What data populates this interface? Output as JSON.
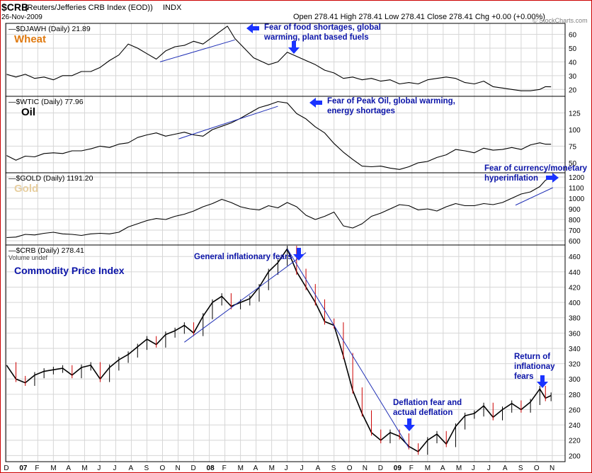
{
  "header": {
    "symbol": "$CRB",
    "description": "(Reuters/Jefferies CRB Index (EOD))",
    "exchange": "INDX",
    "date": "26-Nov-2009",
    "quote_line": "Open 278.41  High 278.41  Low 278.41  Close 278.41  Chg +0.00 (+0.00%)",
    "watermark": "© StockCharts.com"
  },
  "colors": {
    "frame": "#000000",
    "grid": "#d6d6d6",
    "price": "#000000",
    "trend": "#1f2fb5",
    "annotation": "#0b14a8",
    "wheat_label": "#e07a10",
    "oil_label": "#000000",
    "gold_label": "#e8cfa0",
    "crb_label": "#0b14a8",
    "candle_down": "#cc0000",
    "arrow": "#1a33ff",
    "outer_border": "#cc0000"
  },
  "chart_data": [
    {
      "type": "line",
      "id": "wheat",
      "legend": "$DJAWH (Daily) 21.89",
      "big_label": "Wheat",
      "ylim": [
        15,
        68
      ],
      "yticks": [
        20,
        30,
        40,
        50,
        60
      ],
      "points": [
        [
          2007.0,
          31
        ],
        [
          2007.05,
          29
        ],
        [
          2007.1,
          31
        ],
        [
          2007.15,
          28
        ],
        [
          2007.2,
          29
        ],
        [
          2007.25,
          27
        ],
        [
          2007.3,
          30
        ],
        [
          2007.35,
          30
        ],
        [
          2007.4,
          33
        ],
        [
          2007.45,
          33
        ],
        [
          2007.5,
          36
        ],
        [
          2007.55,
          41
        ],
        [
          2007.6,
          45
        ],
        [
          2007.65,
          53
        ],
        [
          2007.7,
          50
        ],
        [
          2007.75,
          46
        ],
        [
          2007.8,
          42
        ],
        [
          2007.85,
          48
        ],
        [
          2007.9,
          51
        ],
        [
          2007.95,
          52
        ],
        [
          2008.0,
          55
        ],
        [
          2008.05,
          53
        ],
        [
          2008.1,
          58
        ],
        [
          2008.15,
          63
        ],
        [
          2008.18,
          66
        ],
        [
          2008.22,
          57
        ],
        [
          2008.27,
          50
        ],
        [
          2008.32,
          43
        ],
        [
          2008.4,
          38
        ],
        [
          2008.45,
          40
        ],
        [
          2008.5,
          47
        ],
        [
          2008.55,
          44
        ],
        [
          2008.6,
          41
        ],
        [
          2008.65,
          38
        ],
        [
          2008.7,
          34
        ],
        [
          2008.75,
          32
        ],
        [
          2008.8,
          28
        ],
        [
          2008.85,
          29
        ],
        [
          2008.9,
          27
        ],
        [
          2008.95,
          28
        ],
        [
          2009.0,
          26
        ],
        [
          2009.05,
          27
        ],
        [
          2009.1,
          24
        ],
        [
          2009.15,
          25
        ],
        [
          2009.2,
          24
        ],
        [
          2009.25,
          27
        ],
        [
          2009.3,
          28
        ],
        [
          2009.35,
          29
        ],
        [
          2009.4,
          28
        ],
        [
          2009.45,
          25
        ],
        [
          2009.5,
          24
        ],
        [
          2009.55,
          26
        ],
        [
          2009.6,
          22
        ],
        [
          2009.65,
          21
        ],
        [
          2009.7,
          20
        ],
        [
          2009.75,
          19
        ],
        [
          2009.8,
          19
        ],
        [
          2009.85,
          20
        ],
        [
          2009.88,
          22
        ],
        [
          2009.91,
          21.89
        ]
      ],
      "trend_lines": [
        [
          [
            2007.82,
            40
          ],
          [
            2008.22,
            56
          ]
        ]
      ],
      "annotation": [
        "Fear of food shortages, global",
        "warming, plant based fuels"
      ]
    },
    {
      "type": "line",
      "id": "oil",
      "legend": "$WTIC (Daily) 77.96",
      "big_label": "Oil",
      "ylim": [
        35,
        150
      ],
      "yticks": [
        50,
        75,
        100,
        125
      ],
      "points": [
        [
          2007.0,
          61
        ],
        [
          2007.05,
          54
        ],
        [
          2007.1,
          60
        ],
        [
          2007.15,
          59
        ],
        [
          2007.2,
          64
        ],
        [
          2007.25,
          65
        ],
        [
          2007.3,
          64
        ],
        [
          2007.35,
          68
        ],
        [
          2007.4,
          68
        ],
        [
          2007.45,
          71
        ],
        [
          2007.5,
          75
        ],
        [
          2007.55,
          73
        ],
        [
          2007.6,
          78
        ],
        [
          2007.65,
          80
        ],
        [
          2007.7,
          88
        ],
        [
          2007.75,
          92
        ],
        [
          2007.8,
          95
        ],
        [
          2007.85,
          90
        ],
        [
          2007.9,
          93
        ],
        [
          2007.95,
          96
        ],
        [
          2008.0,
          92
        ],
        [
          2008.05,
          90
        ],
        [
          2008.1,
          100
        ],
        [
          2008.15,
          105
        ],
        [
          2008.2,
          110
        ],
        [
          2008.25,
          117
        ],
        [
          2008.3,
          125
        ],
        [
          2008.35,
          133
        ],
        [
          2008.4,
          137
        ],
        [
          2008.45,
          142
        ],
        [
          2008.5,
          140
        ],
        [
          2008.55,
          124
        ],
        [
          2008.6,
          116
        ],
        [
          2008.65,
          104
        ],
        [
          2008.7,
          95
        ],
        [
          2008.75,
          79
        ],
        [
          2008.8,
          66
        ],
        [
          2008.85,
          55
        ],
        [
          2008.9,
          45
        ],
        [
          2008.95,
          44
        ],
        [
          2009.0,
          45
        ],
        [
          2009.05,
          42
        ],
        [
          2009.1,
          40
        ],
        [
          2009.15,
          44
        ],
        [
          2009.2,
          50
        ],
        [
          2009.25,
          52
        ],
        [
          2009.3,
          58
        ],
        [
          2009.35,
          62
        ],
        [
          2009.4,
          70
        ],
        [
          2009.45,
          68
        ],
        [
          2009.5,
          65
        ],
        [
          2009.55,
          72
        ],
        [
          2009.6,
          69
        ],
        [
          2009.65,
          70
        ],
        [
          2009.7,
          73
        ],
        [
          2009.75,
          70
        ],
        [
          2009.8,
          77
        ],
        [
          2009.85,
          80
        ],
        [
          2009.88,
          78
        ],
        [
          2009.91,
          77.96
        ]
      ],
      "trend_lines": [
        [
          [
            2007.92,
            86
          ],
          [
            2008.45,
            135
          ]
        ]
      ],
      "annotation": [
        "Fear of Peak Oil, global warming,",
        "energy shortages"
      ]
    },
    {
      "type": "line",
      "id": "gold",
      "legend": "$GOLD (Daily) 1191.20",
      "big_label": "Gold",
      "ylim": [
        560,
        1240
      ],
      "yticks": [
        600,
        700,
        800,
        900,
        1000,
        1100,
        1200
      ],
      "points": [
        [
          2007.0,
          630
        ],
        [
          2007.05,
          635
        ],
        [
          2007.1,
          660
        ],
        [
          2007.15,
          655
        ],
        [
          2007.2,
          670
        ],
        [
          2007.25,
          680
        ],
        [
          2007.3,
          665
        ],
        [
          2007.35,
          660
        ],
        [
          2007.4,
          650
        ],
        [
          2007.45,
          665
        ],
        [
          2007.5,
          670
        ],
        [
          2007.55,
          665
        ],
        [
          2007.6,
          680
        ],
        [
          2007.65,
          730
        ],
        [
          2007.7,
          760
        ],
        [
          2007.75,
          790
        ],
        [
          2007.8,
          810
        ],
        [
          2007.85,
          800
        ],
        [
          2007.9,
          830
        ],
        [
          2007.95,
          850
        ],
        [
          2008.0,
          880
        ],
        [
          2008.05,
          920
        ],
        [
          2008.1,
          950
        ],
        [
          2008.15,
          990
        ],
        [
          2008.2,
          960
        ],
        [
          2008.25,
          920
        ],
        [
          2008.3,
          900
        ],
        [
          2008.35,
          890
        ],
        [
          2008.4,
          930
        ],
        [
          2008.45,
          910
        ],
        [
          2008.5,
          960
        ],
        [
          2008.55,
          920
        ],
        [
          2008.6,
          840
        ],
        [
          2008.65,
          800
        ],
        [
          2008.7,
          830
        ],
        [
          2008.75,
          870
        ],
        [
          2008.8,
          740
        ],
        [
          2008.85,
          720
        ],
        [
          2008.9,
          760
        ],
        [
          2008.95,
          830
        ],
        [
          2009.0,
          860
        ],
        [
          2009.05,
          900
        ],
        [
          2009.1,
          940
        ],
        [
          2009.15,
          930
        ],
        [
          2009.2,
          890
        ],
        [
          2009.25,
          900
        ],
        [
          2009.3,
          880
        ],
        [
          2009.35,
          920
        ],
        [
          2009.4,
          950
        ],
        [
          2009.45,
          930
        ],
        [
          2009.5,
          930
        ],
        [
          2009.55,
          950
        ],
        [
          2009.6,
          940
        ],
        [
          2009.65,
          960
        ],
        [
          2009.7,
          1000
        ],
        [
          2009.75,
          1040
        ],
        [
          2009.8,
          1060
        ],
        [
          2009.85,
          1110
        ],
        [
          2009.88,
          1170
        ],
        [
          2009.91,
          1191.2
        ]
      ],
      "trend_lines": [
        [
          [
            2009.72,
            935
          ],
          [
            2009.92,
            1100
          ]
        ]
      ],
      "annotation": [
        "Fear of currency/monetary",
        "hyperinflation"
      ]
    },
    {
      "type": "line",
      "id": "crb",
      "legend": "$CRB (Daily) 278.41",
      "legend_sub": "Volume undef",
      "big_label": "Commodity Price Index",
      "ylim": [
        192,
        475
      ],
      "yticks": [
        200,
        220,
        240,
        260,
        280,
        300,
        320,
        340,
        360,
        380,
        400,
        420,
        440,
        460
      ],
      "points": [
        [
          2007.0,
          318
        ],
        [
          2007.05,
          300
        ],
        [
          2007.1,
          295
        ],
        [
          2007.15,
          305
        ],
        [
          2007.2,
          310
        ],
        [
          2007.25,
          312
        ],
        [
          2007.3,
          314
        ],
        [
          2007.35,
          305
        ],
        [
          2007.4,
          315
        ],
        [
          2007.45,
          318
        ],
        [
          2007.5,
          300
        ],
        [
          2007.55,
          315
        ],
        [
          2007.6,
          325
        ],
        [
          2007.65,
          332
        ],
        [
          2007.7,
          342
        ],
        [
          2007.75,
          352
        ],
        [
          2007.8,
          345
        ],
        [
          2007.85,
          358
        ],
        [
          2007.9,
          363
        ],
        [
          2007.95,
          370
        ],
        [
          2008.0,
          360
        ],
        [
          2008.05,
          382
        ],
        [
          2008.1,
          400
        ],
        [
          2008.15,
          408
        ],
        [
          2008.2,
          395
        ],
        [
          2008.25,
          400
        ],
        [
          2008.3,
          405
        ],
        [
          2008.35,
          420
        ],
        [
          2008.4,
          440
        ],
        [
          2008.45,
          452
        ],
        [
          2008.5,
          470
        ],
        [
          2008.55,
          440
        ],
        [
          2008.6,
          420
        ],
        [
          2008.65,
          400
        ],
        [
          2008.7,
          375
        ],
        [
          2008.75,
          370
        ],
        [
          2008.8,
          330
        ],
        [
          2008.85,
          285
        ],
        [
          2008.9,
          255
        ],
        [
          2008.95,
          230
        ],
        [
          2009.0,
          220
        ],
        [
          2009.05,
          230
        ],
        [
          2009.1,
          225
        ],
        [
          2009.15,
          212
        ],
        [
          2009.2,
          205
        ],
        [
          2009.25,
          220
        ],
        [
          2009.3,
          228
        ],
        [
          2009.35,
          215
        ],
        [
          2009.4,
          238
        ],
        [
          2009.45,
          252
        ],
        [
          2009.5,
          255
        ],
        [
          2009.55,
          265
        ],
        [
          2009.6,
          250
        ],
        [
          2009.65,
          260
        ],
        [
          2009.7,
          268
        ],
        [
          2009.75,
          260
        ],
        [
          2009.8,
          270
        ],
        [
          2009.85,
          287
        ],
        [
          2009.88,
          275
        ],
        [
          2009.91,
          278.41
        ]
      ],
      "trend_lines": [
        [
          [
            2007.95,
            348
          ],
          [
            2008.6,
            465
          ]
        ],
        [
          [
            2008.5,
            470
          ],
          [
            2009.15,
            210
          ]
        ]
      ],
      "annotations": [
        [
          "General inflationary fears"
        ],
        [
          "Deflation fear and",
          "actual deflation"
        ],
        [
          "Return of",
          "inflationay",
          "fears"
        ]
      ]
    }
  ],
  "x_axis": {
    "xlim": [
      2006.995,
      2009.985
    ],
    "ticks": [
      "D",
      "07",
      "F",
      "M",
      "A",
      "M",
      "J",
      "J",
      "A",
      "S",
      "O",
      "N",
      "D",
      "08",
      "F",
      "M",
      "A",
      "M",
      "J",
      "J",
      "A",
      "S",
      "O",
      "N",
      "D",
      "09",
      "F",
      "M",
      "A",
      "M",
      "J",
      "J",
      "A",
      "S",
      "O",
      "N"
    ]
  }
}
